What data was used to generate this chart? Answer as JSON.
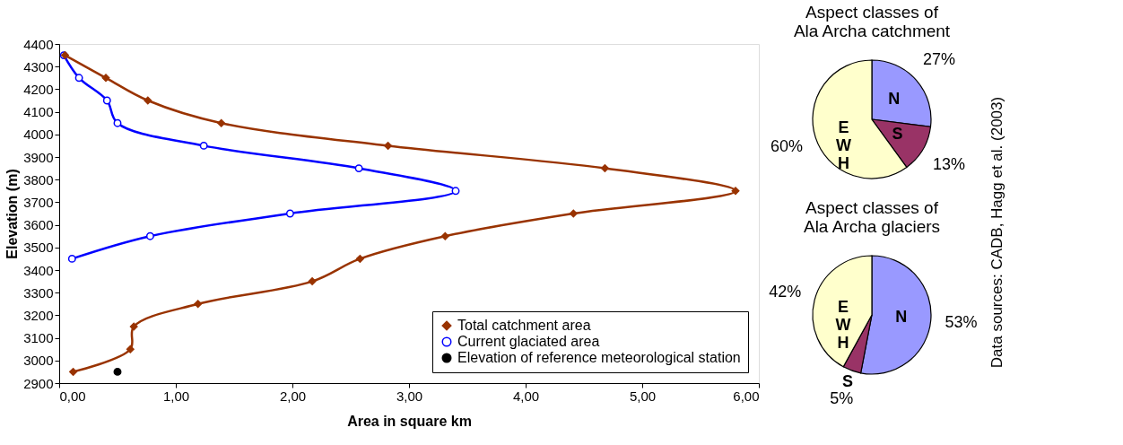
{
  "chart_data": [
    {
      "type": "line",
      "xlabel": "Area in square km",
      "ylabel": "Elevation (m)",
      "xlim": [
        0,
        6
      ],
      "ylim": [
        2900,
        4400
      ],
      "xticks": [
        {
          "value": 0,
          "label": "0,00"
        },
        {
          "value": 1,
          "label": "1,00"
        },
        {
          "value": 2,
          "label": "2,00"
        },
        {
          "value": 3,
          "label": "3,00"
        },
        {
          "value": 4,
          "label": "4,00"
        },
        {
          "value": 5,
          "label": "5,00"
        },
        {
          "value": 6,
          "label": "6,00"
        }
      ],
      "yticks": [
        2900,
        3000,
        3100,
        3200,
        3300,
        3400,
        3500,
        3600,
        3700,
        3800,
        3900,
        4000,
        4100,
        4200,
        4300,
        4400
      ],
      "grid": false,
      "legend": "bottom right",
      "line_style": "solid",
      "annotations": [
        "Data sources: CADB, Hagg et al. (2003)"
      ],
      "series": [
        {
          "name": "Total catchment area",
          "color": "#993300",
          "marker": "diamond",
          "x": [
            0.05,
            0.4,
            0.76,
            1.39,
            2.82,
            4.68,
            5.8,
            4.41,
            3.31,
            2.58,
            2.17,
            1.19,
            0.64,
            0.61,
            0.12
          ],
          "values": [
            4350,
            4250,
            4150,
            4050,
            3950,
            3850,
            3750,
            3650,
            3550,
            3450,
            3350,
            3250,
            3150,
            3050,
            2950
          ]
        },
        {
          "name": "Current glaciated area",
          "color": "#0000ff",
          "marker": "circle",
          "x": [
            0.04,
            0.17,
            0.41,
            0.5,
            1.24,
            2.57,
            3.4,
            1.98,
            0.78,
            0.11
          ],
          "values": [
            4350,
            4250,
            4150,
            4050,
            3950,
            3850,
            3750,
            3650,
            3550,
            3450
          ]
        },
        {
          "name": "Elevation of reference meteorological station",
          "type": "scatter",
          "color": "#000000",
          "marker": "circle",
          "x": [
            0.5
          ],
          "values": [
            2950
          ]
        }
      ]
    },
    {
      "type": "pie",
      "title": "Aspect classes of\nAla Archa catchment",
      "categories": [
        "N",
        "S",
        "E\nW\nH"
      ],
      "values": [
        27,
        13,
        60
      ],
      "colors": [
        "#9999ff",
        "#993366",
        "#ffffcc"
      ],
      "value_labels": [
        "27%",
        "13%",
        "60%"
      ]
    },
    {
      "type": "pie",
      "title": "Aspect classes of\nAla Archa glaciers",
      "categories": [
        "N",
        "S",
        "E\nW\nH"
      ],
      "values": [
        53,
        5,
        42
      ],
      "colors": [
        "#9999ff",
        "#993366",
        "#ffffcc"
      ],
      "value_labels": [
        "53%",
        "5%",
        "42%"
      ]
    }
  ]
}
